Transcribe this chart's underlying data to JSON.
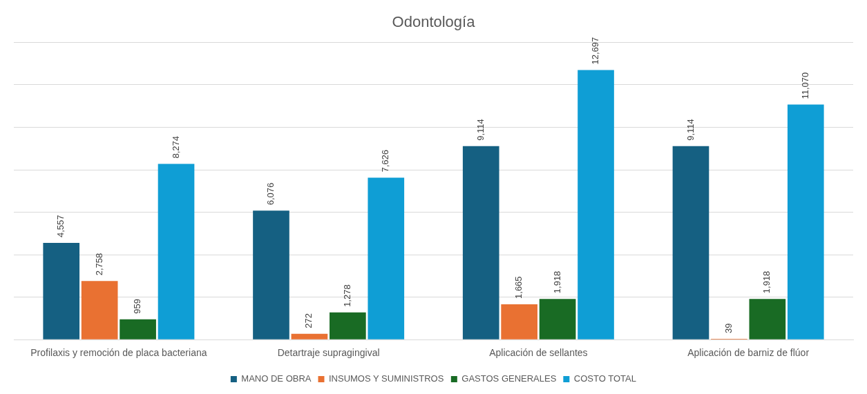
{
  "chart_data": {
    "type": "bar",
    "title": "Odontología",
    "categories": [
      "Profilaxis y remoción de placa bacteriana",
      "Detartraje supragingival",
      "Aplicación de sellantes",
      "Aplicación de barniz de flúor"
    ],
    "series": [
      {
        "name": "MANO DE OBRA",
        "color": "#156082",
        "values": [
          4557,
          6076,
          9114,
          9114
        ],
        "value_labels": [
          "4,557",
          "6,076",
          "9,114",
          "9,114"
        ]
      },
      {
        "name": "INSUMOS Y SUMINISTROS",
        "color": "#e97132",
        "values": [
          2758,
          272,
          1665,
          39
        ],
        "value_labels": [
          "2,758",
          "272",
          "1,665",
          "39"
        ]
      },
      {
        "name": "GASTOS GENERALES",
        "color": "#196b24",
        "values": [
          959,
          1278,
          1918,
          1918
        ],
        "value_labels": [
          "959",
          "1,278",
          "1,918",
          "1,918"
        ]
      },
      {
        "name": "COSTO TOTAL",
        "color": "#0f9ed5",
        "values": [
          8274,
          7626,
          12697,
          11070
        ],
        "value_labels": [
          "8,274",
          "7,626",
          "12,697",
          "11,070"
        ]
      }
    ],
    "ylim": [
      0,
      14000
    ],
    "yticks": [
      {
        "value": 0,
        "label": null
      },
      {
        "value": 2000,
        "label": null
      },
      {
        "value": 4000,
        "label": null
      },
      {
        "value": 6000,
        "label": null
      },
      {
        "value": 8000,
        "label": null
      },
      {
        "value": 10000,
        "label": null
      },
      {
        "value": 12000,
        "label": null
      },
      {
        "value": 14000,
        "label": null
      }
    ],
    "tick_labels": "x",
    "grid": "y",
    "legend": "bottom"
  }
}
